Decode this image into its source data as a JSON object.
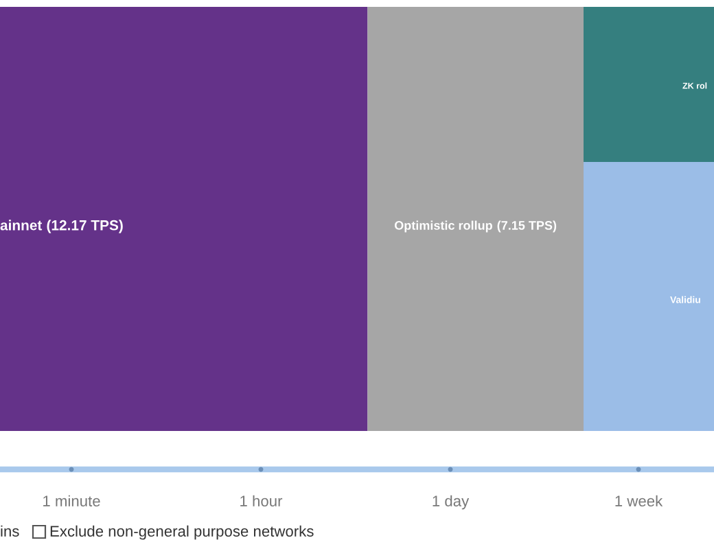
{
  "chart_data": {
    "type": "other",
    "categories": [
      "ainnet",
      "Optimistic rollup",
      "ZK rol",
      "Validiu"
    ],
    "values": [
      12.17,
      7.15,
      null,
      null
    ],
    "value_labels": [
      "(12.17 TPS)",
      "(7.15 TPS)",
      null,
      null
    ],
    "colors": [
      "#643289",
      "#a6a6a6",
      "#357f7f",
      "#9bbde7"
    ],
    "annotations": [
      "1 minute",
      "1 hour",
      "1 day",
      "1 week",
      "ins",
      "Exclude non-general purpose networks"
    ]
  }
}
